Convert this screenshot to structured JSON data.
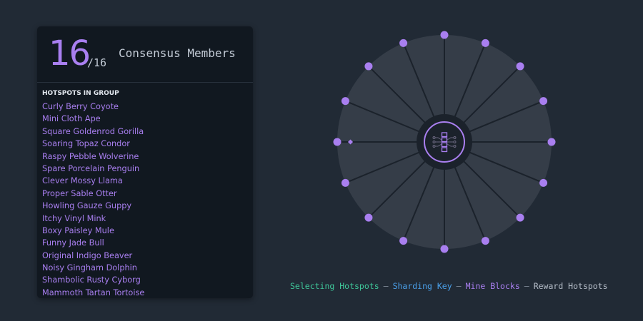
{
  "panel": {
    "count": "16",
    "total": "/16",
    "title": "Consensus Members",
    "subtitle": "HOTSPOTS IN GROUP",
    "hotspots": [
      "Curly Berry Coyote",
      "Mini Cloth Ape",
      "Square Goldenrod Gorilla",
      "Soaring Topaz Condor",
      "Raspy Pebble Wolverine",
      "Spare Porcelain Penguin",
      "Clever Mossy Llama",
      "Proper Sable Otter",
      "Howling Gauze Guppy",
      "Itchy Vinyl Mink",
      "Boxy Paisley Mule",
      "Funny Jade Bull",
      "Original Indigo Beaver",
      "Noisy Gingham Dolphin",
      "Shambolic Rusty Cyborg",
      "Mammoth Tartan Tortoise"
    ]
  },
  "diagram": {
    "members": 16,
    "center_icon": "chip-icon",
    "node_color": "#a97ff0"
  },
  "legend": {
    "steps": [
      {
        "label": "Selecting Hotspots",
        "color": "#3fc79a"
      },
      {
        "label": "Sharding Key",
        "color": "#4a9fe8"
      },
      {
        "label": "Mine Blocks",
        "color": "#a97ff0"
      },
      {
        "label": "Reward Hotspots",
        "color": "#b5bdc8"
      }
    ],
    "separator": "—"
  }
}
